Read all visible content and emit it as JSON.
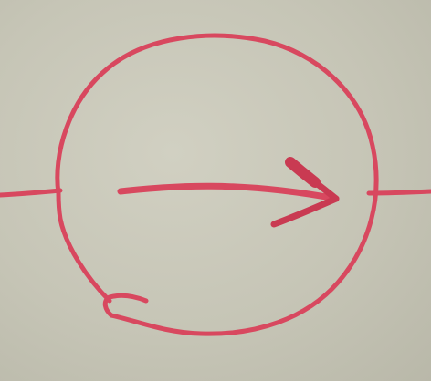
{
  "diagram": {
    "ink_color": "#d8485f",
    "ink_dark": "#c93a52",
    "paper_color": "#c9c8b9",
    "symbol": "current-source-circle",
    "arrow_direction": "right",
    "leads": [
      "left",
      "right"
    ]
  }
}
